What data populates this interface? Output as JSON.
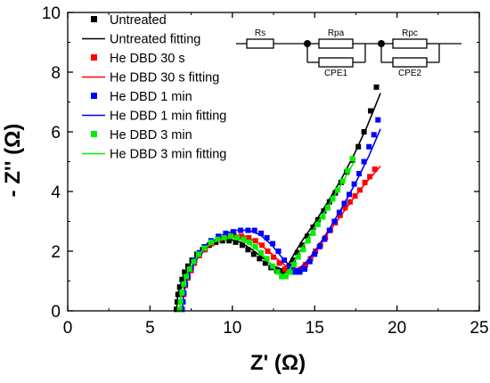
{
  "chart_data": {
    "type": "scatter",
    "xlabel": "Z' (Ω)",
    "ylabel": "- Z'' (Ω)",
    "xlim": [
      0,
      25
    ],
    "ylim": [
      0,
      10
    ],
    "x_ticks": [
      "0",
      "5",
      "10",
      "15",
      "20",
      "25"
    ],
    "y_ticks": [
      "0",
      "2",
      "4",
      "6",
      "8",
      "10"
    ],
    "legend_position": "top-left",
    "colors": {
      "untreated": "#000000",
      "dbd_30s": "#ff0000",
      "dbd_1min": "#0000ff",
      "dbd_3min": "#00ee00"
    },
    "series": [
      {
        "name": "Untreated",
        "kind": "points",
        "color_key": "untreated",
        "points": [
          [
            6.6,
            0.05
          ],
          [
            6.65,
            0.3
          ],
          [
            6.7,
            0.55
          ],
          [
            6.8,
            0.8
          ],
          [
            6.95,
            1.05
          ],
          [
            7.1,
            1.3
          ],
          [
            7.3,
            1.5
          ],
          [
            7.55,
            1.7
          ],
          [
            7.85,
            1.9
          ],
          [
            8.2,
            2.05
          ],
          [
            8.6,
            2.2
          ],
          [
            9.0,
            2.3
          ],
          [
            9.4,
            2.35
          ],
          [
            9.8,
            2.35
          ],
          [
            10.2,
            2.3
          ],
          [
            10.6,
            2.2
          ],
          [
            10.95,
            2.05
          ],
          [
            11.3,
            1.9
          ],
          [
            11.65,
            1.75
          ],
          [
            12.0,
            1.6
          ],
          [
            12.35,
            1.45
          ],
          [
            12.7,
            1.35
          ],
          [
            13.0,
            1.3
          ],
          [
            13.2,
            1.35
          ],
          [
            13.45,
            1.5
          ],
          [
            13.7,
            1.7
          ],
          [
            13.95,
            1.95
          ],
          [
            14.25,
            2.2
          ],
          [
            14.55,
            2.5
          ],
          [
            14.9,
            2.8
          ],
          [
            15.2,
            3.05
          ],
          [
            15.55,
            3.35
          ],
          [
            15.9,
            3.65
          ],
          [
            16.25,
            3.95
          ],
          [
            16.6,
            4.3
          ],
          [
            16.95,
            4.65
          ],
          [
            17.3,
            5.05
          ],
          [
            17.65,
            5.5
          ],
          [
            18.0,
            6.0
          ],
          [
            18.4,
            6.7
          ],
          [
            18.75,
            7.5
          ]
        ]
      },
      {
        "name": "Untreated fitting",
        "kind": "line",
        "color_key": "untreated",
        "points": [
          [
            6.6,
            0.0
          ],
          [
            6.7,
            0.6
          ],
          [
            7.0,
            1.15
          ],
          [
            7.5,
            1.65
          ],
          [
            8.2,
            2.05
          ],
          [
            9.0,
            2.3
          ],
          [
            9.8,
            2.4
          ],
          [
            10.5,
            2.3
          ],
          [
            11.2,
            2.05
          ],
          [
            11.9,
            1.75
          ],
          [
            12.5,
            1.5
          ],
          [
            13.0,
            1.4
          ],
          [
            13.4,
            1.55
          ],
          [
            13.8,
            1.95
          ],
          [
            14.3,
            2.4
          ],
          [
            15.0,
            2.95
          ],
          [
            15.8,
            3.65
          ],
          [
            16.6,
            4.4
          ],
          [
            17.4,
            5.25
          ],
          [
            18.2,
            6.2
          ],
          [
            19.0,
            7.3
          ]
        ]
      },
      {
        "name": "He DBD 30 s",
        "kind": "points",
        "color_key": "dbd_30s",
        "points": [
          [
            6.95,
            0.05
          ],
          [
            7.0,
            0.3
          ],
          [
            7.05,
            0.55
          ],
          [
            7.15,
            0.85
          ],
          [
            7.3,
            1.1
          ],
          [
            7.5,
            1.35
          ],
          [
            7.7,
            1.6
          ],
          [
            8.0,
            1.85
          ],
          [
            8.35,
            2.05
          ],
          [
            8.75,
            2.25
          ],
          [
            9.2,
            2.4
          ],
          [
            9.65,
            2.5
          ],
          [
            10.1,
            2.55
          ],
          [
            10.55,
            2.5
          ],
          [
            11.0,
            2.45
          ],
          [
            11.4,
            2.35
          ],
          [
            11.8,
            2.2
          ],
          [
            12.15,
            2.0
          ],
          [
            12.5,
            1.8
          ],
          [
            12.85,
            1.6
          ],
          [
            13.2,
            1.4
          ],
          [
            13.55,
            1.3
          ],
          [
            13.85,
            1.3
          ],
          [
            14.15,
            1.4
          ],
          [
            14.45,
            1.55
          ],
          [
            14.75,
            1.75
          ],
          [
            15.05,
            2.0
          ],
          [
            15.35,
            2.2
          ],
          [
            15.65,
            2.45
          ],
          [
            15.95,
            2.7
          ],
          [
            16.25,
            2.95
          ],
          [
            16.55,
            3.2
          ],
          [
            16.85,
            3.45
          ],
          [
            17.15,
            3.65
          ],
          [
            17.45,
            3.85
          ],
          [
            17.75,
            4.05
          ],
          [
            18.05,
            4.3
          ],
          [
            18.35,
            4.5
          ],
          [
            18.65,
            4.75
          ]
        ]
      },
      {
        "name": "He DBD 30 s fitting",
        "kind": "line",
        "color_key": "dbd_30s",
        "points": [
          [
            6.95,
            0.0
          ],
          [
            7.05,
            0.6
          ],
          [
            7.3,
            1.15
          ],
          [
            7.8,
            1.7
          ],
          [
            8.5,
            2.15
          ],
          [
            9.3,
            2.45
          ],
          [
            10.1,
            2.55
          ],
          [
            10.8,
            2.5
          ],
          [
            11.5,
            2.3
          ],
          [
            12.2,
            2.0
          ],
          [
            12.9,
            1.65
          ],
          [
            13.5,
            1.4
          ],
          [
            14.0,
            1.4
          ],
          [
            14.5,
            1.65
          ],
          [
            15.1,
            2.05
          ],
          [
            15.8,
            2.6
          ],
          [
            16.6,
            3.2
          ],
          [
            17.4,
            3.8
          ],
          [
            18.2,
            4.35
          ],
          [
            19.0,
            4.85
          ]
        ]
      },
      {
        "name": "He DBD 1 min",
        "kind": "points",
        "color_key": "dbd_1min",
        "points": [
          [
            6.95,
            0.05
          ],
          [
            7.0,
            0.3
          ],
          [
            7.05,
            0.6
          ],
          [
            7.15,
            0.9
          ],
          [
            7.3,
            1.15
          ],
          [
            7.5,
            1.45
          ],
          [
            7.7,
            1.7
          ],
          [
            8.0,
            1.95
          ],
          [
            8.3,
            2.15
          ],
          [
            8.7,
            2.35
          ],
          [
            9.15,
            2.5
          ],
          [
            9.6,
            2.6
          ],
          [
            10.05,
            2.65
          ],
          [
            10.5,
            2.7
          ],
          [
            10.95,
            2.7
          ],
          [
            11.35,
            2.7
          ],
          [
            11.75,
            2.6
          ],
          [
            12.1,
            2.45
          ],
          [
            12.45,
            2.25
          ],
          [
            12.8,
            2.0
          ],
          [
            13.15,
            1.7
          ],
          [
            13.5,
            1.45
          ],
          [
            13.8,
            1.3
          ],
          [
            14.1,
            1.3
          ],
          [
            14.4,
            1.4
          ],
          [
            14.7,
            1.65
          ],
          [
            15.0,
            1.9
          ],
          [
            15.3,
            2.15
          ],
          [
            15.6,
            2.4
          ],
          [
            15.9,
            2.7
          ],
          [
            16.2,
            3.0
          ],
          [
            16.5,
            3.3
          ],
          [
            16.8,
            3.6
          ],
          [
            17.1,
            3.9
          ],
          [
            17.4,
            4.25
          ],
          [
            17.7,
            4.6
          ],
          [
            18.0,
            5.0
          ],
          [
            18.3,
            5.5
          ],
          [
            18.6,
            5.9
          ],
          [
            18.85,
            6.4
          ]
        ]
      },
      {
        "name": "He DBD 1 min fitting",
        "kind": "line",
        "color_key": "dbd_1min",
        "points": [
          [
            6.95,
            0.0
          ],
          [
            7.05,
            0.65
          ],
          [
            7.35,
            1.25
          ],
          [
            7.9,
            1.8
          ],
          [
            8.6,
            2.25
          ],
          [
            9.4,
            2.55
          ],
          [
            10.2,
            2.7
          ],
          [
            11.0,
            2.7
          ],
          [
            11.7,
            2.55
          ],
          [
            12.4,
            2.2
          ],
          [
            13.0,
            1.8
          ],
          [
            13.6,
            1.45
          ],
          [
            14.1,
            1.4
          ],
          [
            14.6,
            1.7
          ],
          [
            15.2,
            2.15
          ],
          [
            15.9,
            2.75
          ],
          [
            16.7,
            3.5
          ],
          [
            17.5,
            4.3
          ],
          [
            18.3,
            5.2
          ],
          [
            19.0,
            6.1
          ]
        ]
      },
      {
        "name": "He DBD 3 min",
        "kind": "points",
        "color_key": "dbd_3min",
        "points": [
          [
            6.8,
            0.05
          ],
          [
            6.85,
            0.3
          ],
          [
            6.95,
            0.6
          ],
          [
            7.05,
            0.9
          ],
          [
            7.2,
            1.15
          ],
          [
            7.4,
            1.4
          ],
          [
            7.65,
            1.65
          ],
          [
            7.95,
            1.9
          ],
          [
            8.3,
            2.1
          ],
          [
            8.7,
            2.3
          ],
          [
            9.1,
            2.4
          ],
          [
            9.5,
            2.45
          ],
          [
            9.9,
            2.5
          ],
          [
            10.3,
            2.45
          ],
          [
            10.7,
            2.4
          ],
          [
            11.05,
            2.3
          ],
          [
            11.4,
            2.15
          ],
          [
            11.75,
            1.95
          ],
          [
            12.1,
            1.75
          ],
          [
            12.45,
            1.5
          ],
          [
            12.75,
            1.3
          ],
          [
            13.0,
            1.15
          ],
          [
            13.25,
            1.15
          ],
          [
            13.5,
            1.3
          ],
          [
            13.75,
            1.55
          ],
          [
            14.0,
            1.8
          ],
          [
            14.3,
            2.05
          ],
          [
            14.6,
            2.35
          ],
          [
            14.9,
            2.6
          ],
          [
            15.2,
            2.9
          ],
          [
            15.5,
            3.15
          ],
          [
            15.8,
            3.45
          ],
          [
            16.1,
            3.75
          ],
          [
            16.4,
            4.05
          ],
          [
            16.7,
            4.35
          ],
          [
            17.0,
            4.7
          ],
          [
            17.3,
            5.1
          ]
        ]
      },
      {
        "name": "He DBD 3 min fitting",
        "kind": "line",
        "color_key": "dbd_3min",
        "points": [
          [
            6.8,
            0.0
          ],
          [
            6.9,
            0.65
          ],
          [
            7.2,
            1.2
          ],
          [
            7.7,
            1.7
          ],
          [
            8.4,
            2.15
          ],
          [
            9.2,
            2.4
          ],
          [
            10.0,
            2.45
          ],
          [
            10.7,
            2.35
          ],
          [
            11.4,
            2.1
          ],
          [
            12.1,
            1.7
          ],
          [
            12.7,
            1.3
          ],
          [
            13.1,
            1.2
          ],
          [
            13.5,
            1.4
          ],
          [
            13.9,
            1.8
          ],
          [
            14.4,
            2.25
          ],
          [
            15.0,
            2.8
          ],
          [
            15.7,
            3.4
          ],
          [
            16.4,
            4.05
          ],
          [
            17.0,
            4.6
          ],
          [
            17.4,
            5.0
          ]
        ]
      }
    ],
    "legend": [
      {
        "label": "Untreated",
        "kind": "marker",
        "color_key": "untreated"
      },
      {
        "label": "Untreated fitting",
        "kind": "line",
        "color_key": "untreated"
      },
      {
        "label": "He DBD 30 s",
        "kind": "marker",
        "color_key": "dbd_30s"
      },
      {
        "label": "He DBD 30 s fitting",
        "kind": "line",
        "color_key": "dbd_30s"
      },
      {
        "label": "He DBD 1 min",
        "kind": "marker",
        "color_key": "dbd_1min"
      },
      {
        "label": "He DBD 1 min fitting",
        "kind": "line",
        "color_key": "dbd_1min"
      },
      {
        "label": "He DBD 3 min",
        "kind": "marker",
        "color_key": "dbd_3min"
      },
      {
        "label": "He DBD 3 min fitting",
        "kind": "line",
        "color_key": "dbd_3min"
      }
    ],
    "circuit_inset": {
      "rs_label": "Rs",
      "rpa_label": "Rpa",
      "cpe1_label": "CPE1",
      "rpc_label": "Rpc",
      "cpe2_label": "CPE2"
    }
  }
}
